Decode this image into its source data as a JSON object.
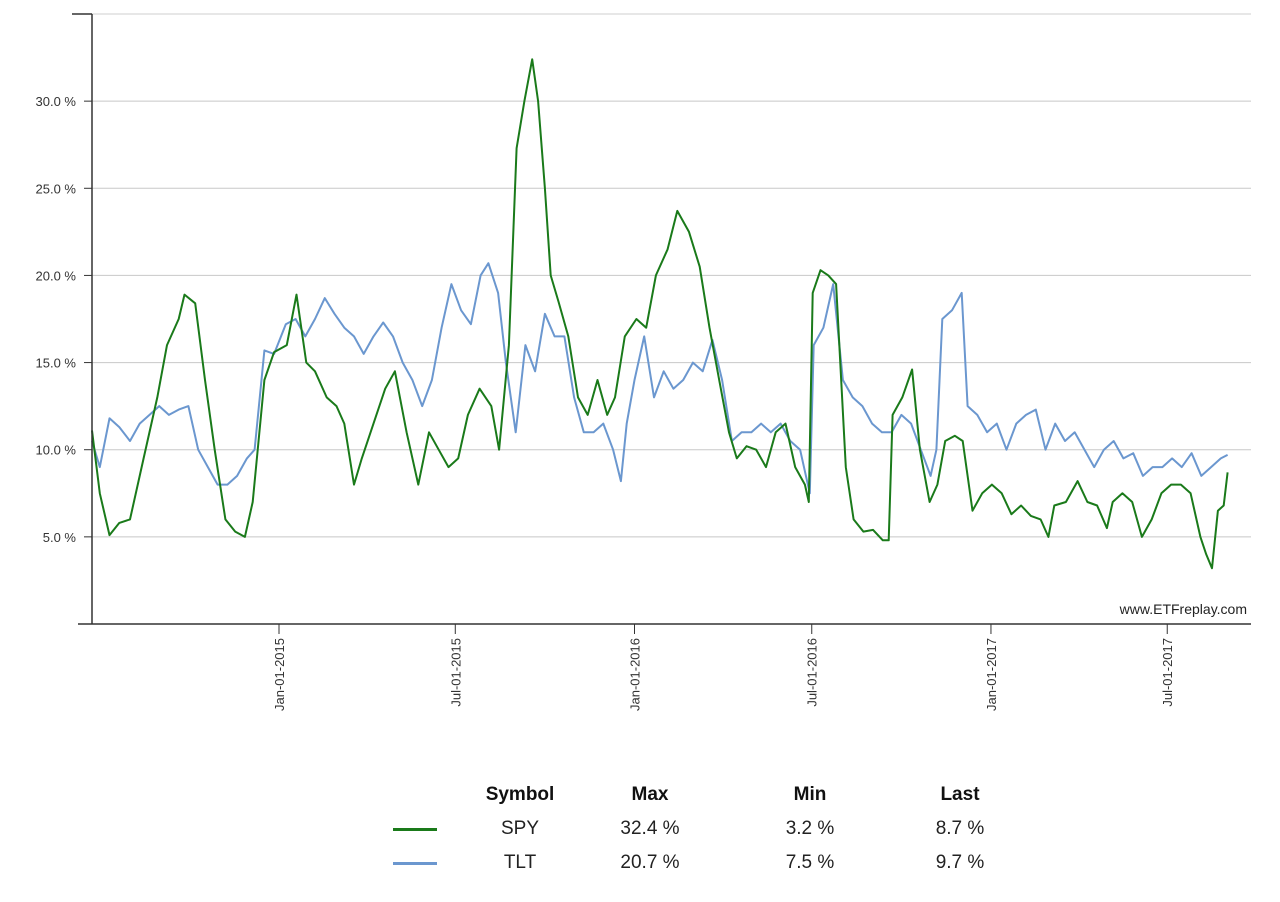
{
  "watermark": "www.ETFreplay.com",
  "legend": {
    "headers": {
      "symbol": "Symbol",
      "max": "Max",
      "min": "Min",
      "last": "Last"
    },
    "rows": [
      {
        "symbol": "SPY",
        "max": "32.4 %",
        "min": "3.2 %",
        "last": "8.7 %",
        "color": "#1a7a1a"
      },
      {
        "symbol": "TLT",
        "max": "20.7 %",
        "min": "7.5 %",
        "last": "9.7 %",
        "color": "#6b97cf"
      }
    ]
  },
  "chart_data": {
    "type": "line",
    "title": "",
    "xlabel": "",
    "ylabel": "",
    "xlim": [
      "2014-06-23",
      "2017-09-25"
    ],
    "ylim": [
      0,
      35
    ],
    "grid": true,
    "y_ticks": [
      5,
      10,
      15,
      20,
      25,
      30
    ],
    "y_tick_labels": [
      "5.0 %",
      "10.0 %",
      "15.0 %",
      "20.0 %",
      "25.0 %",
      "30.0 %"
    ],
    "x_ticks": [
      "2015-01-01",
      "2015-07-01",
      "2016-01-01",
      "2016-07-01",
      "2017-01-01",
      "2017-07-01"
    ],
    "x_tick_labels": [
      "Jan-01-2015",
      "Jul-01-2015",
      "Jan-01-2016",
      "Jul-01-2016",
      "Jan-01-2017",
      "Jul-01-2017"
    ],
    "series": [
      {
        "name": "SPY",
        "color": "#1a7a1a",
        "points": [
          [
            "2014-06-23",
            11.1
          ],
          [
            "2014-07-01",
            7.5
          ],
          [
            "2014-07-11",
            5.1
          ],
          [
            "2014-07-21",
            5.8
          ],
          [
            "2014-08-01",
            6.0
          ],
          [
            "2014-08-15",
            9.5
          ],
          [
            "2014-08-29",
            13.0
          ],
          [
            "2014-09-08",
            16.0
          ],
          [
            "2014-09-20",
            17.5
          ],
          [
            "2014-09-26",
            18.9
          ],
          [
            "2014-10-07",
            18.4
          ],
          [
            "2014-10-17",
            14.0
          ],
          [
            "2014-10-27",
            10.0
          ],
          [
            "2014-11-07",
            6.0
          ],
          [
            "2014-11-17",
            5.3
          ],
          [
            "2014-11-27",
            5.0
          ],
          [
            "2014-12-05",
            7.0
          ],
          [
            "2014-12-17",
            14.0
          ],
          [
            "2014-12-27",
            15.6
          ],
          [
            "2015-01-09",
            16.0
          ],
          [
            "2015-01-19",
            18.9
          ],
          [
            "2015-01-29",
            15.0
          ],
          [
            "2015-02-07",
            14.5
          ],
          [
            "2015-02-19",
            13.0
          ],
          [
            "2015-03-01",
            12.5
          ],
          [
            "2015-03-09",
            11.5
          ],
          [
            "2015-03-19",
            8.0
          ],
          [
            "2015-03-27",
            9.5
          ],
          [
            "2015-04-08",
            11.5
          ],
          [
            "2015-04-20",
            13.5
          ],
          [
            "2015-04-30",
            14.5
          ],
          [
            "2015-05-12",
            11.0
          ],
          [
            "2015-05-24",
            8.0
          ],
          [
            "2015-06-04",
            11.0
          ],
          [
            "2015-06-14",
            10.0
          ],
          [
            "2015-06-24",
            9.0
          ],
          [
            "2015-07-04",
            9.5
          ],
          [
            "2015-07-14",
            12.0
          ],
          [
            "2015-07-26",
            13.5
          ],
          [
            "2015-08-07",
            12.5
          ],
          [
            "2015-08-15",
            10.0
          ],
          [
            "2015-08-25",
            16.0
          ],
          [
            "2015-09-02",
            27.3
          ],
          [
            "2015-09-10",
            30.0
          ],
          [
            "2015-09-18",
            32.4
          ],
          [
            "2015-09-24",
            30.0
          ],
          [
            "2015-10-01",
            25.0
          ],
          [
            "2015-10-07",
            20.0
          ],
          [
            "2015-10-15",
            18.5
          ],
          [
            "2015-10-25",
            16.5
          ],
          [
            "2015-11-04",
            13.0
          ],
          [
            "2015-11-14",
            12.0
          ],
          [
            "2015-11-24",
            14.0
          ],
          [
            "2015-12-04",
            12.0
          ],
          [
            "2015-12-12",
            13.0
          ],
          [
            "2015-12-22",
            16.5
          ],
          [
            "2016-01-03",
            17.5
          ],
          [
            "2016-01-13",
            17.0
          ],
          [
            "2016-01-23",
            20.0
          ],
          [
            "2016-02-04",
            21.5
          ],
          [
            "2016-02-14",
            23.7
          ],
          [
            "2016-02-26",
            22.5
          ],
          [
            "2016-03-08",
            20.5
          ],
          [
            "2016-03-18",
            17.0
          ],
          [
            "2016-03-28",
            14.0
          ],
          [
            "2016-04-07",
            11.0
          ],
          [
            "2016-04-15",
            9.5
          ],
          [
            "2016-04-25",
            10.2
          ],
          [
            "2016-05-05",
            10.0
          ],
          [
            "2016-05-15",
            9.0
          ],
          [
            "2016-05-25",
            11.0
          ],
          [
            "2016-06-04",
            11.5
          ],
          [
            "2016-06-14",
            9.0
          ],
          [
            "2016-06-24",
            8.0
          ],
          [
            "2016-06-28",
            7.0
          ],
          [
            "2016-07-02",
            19.0
          ],
          [
            "2016-07-10",
            20.3
          ],
          [
            "2016-07-18",
            20.0
          ],
          [
            "2016-07-26",
            19.5
          ],
          [
            "2016-08-05",
            9.0
          ],
          [
            "2016-08-13",
            6.0
          ],
          [
            "2016-08-23",
            5.3
          ],
          [
            "2016-09-02",
            5.4
          ],
          [
            "2016-09-12",
            4.8
          ],
          [
            "2016-09-18",
            4.8
          ],
          [
            "2016-09-22",
            12.0
          ],
          [
            "2016-10-02",
            13.0
          ],
          [
            "2016-10-12",
            14.6
          ],
          [
            "2016-10-20",
            10.0
          ],
          [
            "2016-10-30",
            7.0
          ],
          [
            "2016-11-07",
            8.0
          ],
          [
            "2016-11-15",
            10.5
          ],
          [
            "2016-11-25",
            10.8
          ],
          [
            "2016-12-03",
            10.5
          ],
          [
            "2016-12-13",
            6.5
          ],
          [
            "2016-12-23",
            7.5
          ],
          [
            "2017-01-02",
            8.0
          ],
          [
            "2017-01-12",
            7.5
          ],
          [
            "2017-01-22",
            6.3
          ],
          [
            "2017-02-01",
            6.8
          ],
          [
            "2017-02-11",
            6.2
          ],
          [
            "2017-02-21",
            6.0
          ],
          [
            "2017-03-01",
            5.0
          ],
          [
            "2017-03-07",
            6.8
          ],
          [
            "2017-03-19",
            7.0
          ],
          [
            "2017-03-31",
            8.2
          ],
          [
            "2017-04-10",
            7.0
          ],
          [
            "2017-04-20",
            6.8
          ],
          [
            "2017-04-30",
            5.5
          ],
          [
            "2017-05-06",
            7.0
          ],
          [
            "2017-05-16",
            7.5
          ],
          [
            "2017-05-26",
            7.0
          ],
          [
            "2017-06-05",
            5.0
          ],
          [
            "2017-06-15",
            6.0
          ],
          [
            "2017-06-25",
            7.5
          ],
          [
            "2017-07-05",
            8.0
          ],
          [
            "2017-07-15",
            8.0
          ],
          [
            "2017-07-25",
            7.5
          ],
          [
            "2017-08-04",
            5.0
          ],
          [
            "2017-08-10",
            4.0
          ],
          [
            "2017-08-16",
            3.2
          ],
          [
            "2017-08-22",
            6.5
          ],
          [
            "2017-08-28",
            6.8
          ],
          [
            "2017-09-01",
            8.7
          ]
        ]
      },
      {
        "name": "TLT",
        "color": "#6b97cf",
        "points": [
          [
            "2014-06-23",
            10.5
          ],
          [
            "2014-07-01",
            9.0
          ],
          [
            "2014-07-11",
            11.8
          ],
          [
            "2014-07-21",
            11.3
          ],
          [
            "2014-08-01",
            10.5
          ],
          [
            "2014-08-11",
            11.5
          ],
          [
            "2014-08-21",
            12.0
          ],
          [
            "2014-08-31",
            12.5
          ],
          [
            "2014-09-10",
            12.0
          ],
          [
            "2014-09-20",
            12.3
          ],
          [
            "2014-09-30",
            12.5
          ],
          [
            "2014-10-10",
            10.0
          ],
          [
            "2014-10-20",
            9.0
          ],
          [
            "2014-10-30",
            8.0
          ],
          [
            "2014-11-09",
            8.0
          ],
          [
            "2014-11-19",
            8.5
          ],
          [
            "2014-11-29",
            9.5
          ],
          [
            "2014-12-07",
            10.0
          ],
          [
            "2014-12-17",
            15.7
          ],
          [
            "2014-12-27",
            15.5
          ],
          [
            "2015-01-08",
            17.2
          ],
          [
            "2015-01-18",
            17.5
          ],
          [
            "2015-01-28",
            16.5
          ],
          [
            "2015-02-07",
            17.5
          ],
          [
            "2015-02-17",
            18.7
          ],
          [
            "2015-02-27",
            17.8
          ],
          [
            "2015-03-09",
            17.0
          ],
          [
            "2015-03-19",
            16.5
          ],
          [
            "2015-03-29",
            15.5
          ],
          [
            "2015-04-08",
            16.5
          ],
          [
            "2015-04-18",
            17.3
          ],
          [
            "2015-04-28",
            16.5
          ],
          [
            "2015-05-08",
            15.0
          ],
          [
            "2015-05-18",
            14.0
          ],
          [
            "2015-05-28",
            12.5
          ],
          [
            "2015-06-07",
            14.0
          ],
          [
            "2015-06-17",
            17.0
          ],
          [
            "2015-06-27",
            19.5
          ],
          [
            "2015-07-07",
            18.0
          ],
          [
            "2015-07-17",
            17.2
          ],
          [
            "2015-07-27",
            20.0
          ],
          [
            "2015-08-04",
            20.7
          ],
          [
            "2015-08-14",
            19.0
          ],
          [
            "2015-08-22",
            15.0
          ],
          [
            "2015-09-01",
            11.0
          ],
          [
            "2015-09-11",
            16.0
          ],
          [
            "2015-09-21",
            14.5
          ],
          [
            "2015-10-01",
            17.8
          ],
          [
            "2015-10-11",
            16.5
          ],
          [
            "2015-10-21",
            16.5
          ],
          [
            "2015-10-31",
            13.0
          ],
          [
            "2015-11-10",
            11.0
          ],
          [
            "2015-11-20",
            11.0
          ],
          [
            "2015-11-30",
            11.5
          ],
          [
            "2015-12-10",
            10.0
          ],
          [
            "2015-12-18",
            8.2
          ],
          [
            "2015-12-24",
            11.5
          ],
          [
            "2016-01-01",
            14.0
          ],
          [
            "2016-01-11",
            16.5
          ],
          [
            "2016-01-21",
            13.0
          ],
          [
            "2016-01-31",
            14.5
          ],
          [
            "2016-02-10",
            13.5
          ],
          [
            "2016-02-20",
            14.0
          ],
          [
            "2016-03-01",
            15.0
          ],
          [
            "2016-03-11",
            14.5
          ],
          [
            "2016-03-21",
            16.3
          ],
          [
            "2016-03-31",
            14.0
          ],
          [
            "2016-04-10",
            10.5
          ],
          [
            "2016-04-20",
            11.0
          ],
          [
            "2016-04-30",
            11.0
          ],
          [
            "2016-05-10",
            11.5
          ],
          [
            "2016-05-20",
            11.0
          ],
          [
            "2016-05-30",
            11.5
          ],
          [
            "2016-06-09",
            10.5
          ],
          [
            "2016-06-19",
            10.0
          ],
          [
            "2016-06-29",
            7.5
          ],
          [
            "2016-07-03",
            16.0
          ],
          [
            "2016-07-13",
            17.0
          ],
          [
            "2016-07-23",
            19.5
          ],
          [
            "2016-08-02",
            14.0
          ],
          [
            "2016-08-12",
            13.0
          ],
          [
            "2016-08-22",
            12.5
          ],
          [
            "2016-09-01",
            11.5
          ],
          [
            "2016-09-11",
            11.0
          ],
          [
            "2016-09-21",
            11.0
          ],
          [
            "2016-10-01",
            12.0
          ],
          [
            "2016-10-11",
            11.5
          ],
          [
            "2016-10-21",
            10.0
          ],
          [
            "2016-10-31",
            8.5
          ],
          [
            "2016-11-06",
            10.0
          ],
          [
            "2016-11-12",
            17.5
          ],
          [
            "2016-11-22",
            18.0
          ],
          [
            "2016-12-02",
            19.0
          ],
          [
            "2016-12-08",
            12.5
          ],
          [
            "2016-12-18",
            12.0
          ],
          [
            "2016-12-28",
            11.0
          ],
          [
            "2017-01-07",
            11.5
          ],
          [
            "2017-01-17",
            10.0
          ],
          [
            "2017-01-27",
            11.5
          ],
          [
            "2017-02-06",
            12.0
          ],
          [
            "2017-02-16",
            12.3
          ],
          [
            "2017-02-26",
            10.0
          ],
          [
            "2017-03-08",
            11.5
          ],
          [
            "2017-03-18",
            10.5
          ],
          [
            "2017-03-28",
            11.0
          ],
          [
            "2017-04-07",
            10.0
          ],
          [
            "2017-04-17",
            9.0
          ],
          [
            "2017-04-27",
            10.0
          ],
          [
            "2017-05-07",
            10.5
          ],
          [
            "2017-05-17",
            9.5
          ],
          [
            "2017-05-27",
            9.8
          ],
          [
            "2017-06-06",
            8.5
          ],
          [
            "2017-06-16",
            9.0
          ],
          [
            "2017-06-26",
            9.0
          ],
          [
            "2017-07-06",
            9.5
          ],
          [
            "2017-07-16",
            9.0
          ],
          [
            "2017-07-26",
            9.8
          ],
          [
            "2017-08-05",
            8.5
          ],
          [
            "2017-08-15",
            9.0
          ],
          [
            "2017-08-25",
            9.5
          ],
          [
            "2017-09-01",
            9.7
          ]
        ]
      }
    ]
  }
}
